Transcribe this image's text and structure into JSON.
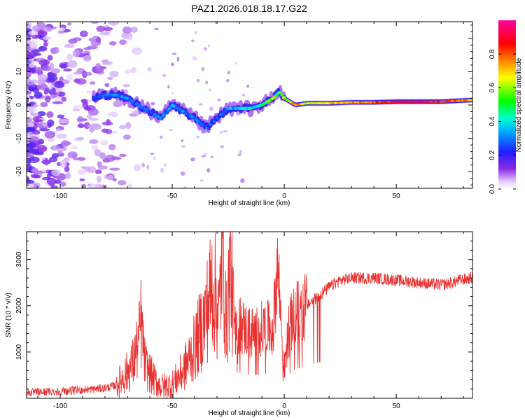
{
  "title": "PAZ1.2026.018.18.17.G22",
  "colors": {
    "snr_line": "#e83232",
    "axis": "#000000",
    "background": "#ffffff"
  },
  "chart_data": [
    {
      "type": "heatmap",
      "name": "spectrogram",
      "xlabel": "Height of straight line (km)",
      "ylabel": "Frequency (Hz)",
      "xlim": [
        -115,
        84
      ],
      "ylim": [
        -25,
        25
      ],
      "xticks": [
        "-100",
        "-50",
        "0",
        "50"
      ],
      "xtick_values": [
        -100,
        -50,
        0,
        50
      ],
      "yticks": [
        "20",
        "10",
        "0",
        "-10",
        "-20"
      ],
      "ytick_values": [
        20,
        10,
        0,
        -10,
        -20
      ],
      "colorbar": {
        "label": "Normalized spectral amplitude",
        "range": [
          0,
          1
        ],
        "ticks": [
          "0.0",
          "0.2",
          "0.4",
          "0.6",
          "0.8"
        ],
        "tick_values": [
          0.0,
          0.2,
          0.4,
          0.6,
          0.8
        ],
        "colormap": "rainbow (purple-blue-cyan-green-yellow-red-magenta)"
      },
      "ridge": {
        "x": [
          -85,
          -80,
          -75,
          -70,
          -65,
          -60,
          -55,
          -50,
          -45,
          -40,
          -35,
          -30,
          -25,
          -20,
          -15,
          -10,
          -5,
          -2,
          0,
          5,
          10,
          20,
          30,
          40,
          50,
          60,
          70,
          84
        ],
        "y": [
          2,
          3,
          3,
          2,
          0,
          -2,
          -4,
          0,
          -2,
          -4,
          -7,
          -4,
          -1,
          -1,
          -1,
          0,
          2,
          4,
          2,
          0,
          0.5,
          0.5,
          0.8,
          0.8,
          1,
          1,
          1,
          1.5
        ],
        "amplitude": [
          0.25,
          0.3,
          0.3,
          0.28,
          0.25,
          0.25,
          0.28,
          0.3,
          0.3,
          0.3,
          0.25,
          0.25,
          0.3,
          0.35,
          0.4,
          0.45,
          0.5,
          0.45,
          0.55,
          0.8,
          0.65,
          0.7,
          0.75,
          0.8,
          0.9,
          0.95,
          0.85,
          0.75
        ]
      },
      "noise_region_km": [
        -115,
        -65
      ]
    },
    {
      "type": "line",
      "name": "snr",
      "xlabel": "Height of straight line (km)",
      "ylabel": "SNR (10 * v/v)",
      "xlim": [
        -115,
        84
      ],
      "ylim": [
        0,
        3600
      ],
      "xticks": [
        "-100",
        "-50",
        "0",
        "50"
      ],
      "xtick_values": [
        -100,
        -50,
        0,
        50
      ],
      "yticks": [
        "1000",
        "2000",
        "3000"
      ],
      "ytick_values": [
        1000,
        2000,
        3000
      ],
      "series": [
        {
          "name": "SNR",
          "x": [
            -115,
            -100,
            -90,
            -80,
            -75,
            -72,
            -68,
            -65,
            -64,
            -62,
            -58,
            -55,
            -50,
            -45,
            -40,
            -35,
            -32,
            -29,
            -27.5,
            -26,
            -24,
            -22,
            -20,
            -15,
            -10,
            -5,
            -3,
            -1,
            0,
            2,
            5,
            10,
            15,
            20,
            25,
            30,
            40,
            50,
            60,
            70,
            75,
            78,
            84
          ],
          "y": [
            120,
            150,
            180,
            220,
            280,
            450,
            700,
            1200,
            1650,
            700,
            400,
            250,
            300,
            600,
            1100,
            1800,
            2500,
            1800,
            3550,
            1500,
            2900,
            1200,
            1600,
            1400,
            1500,
            1500,
            2900,
            1400,
            600,
            1500,
            1800,
            2000,
            2200,
            2400,
            2550,
            2600,
            2600,
            2550,
            2500,
            2450,
            2500,
            2550,
            2600
          ]
        }
      ]
    }
  ]
}
